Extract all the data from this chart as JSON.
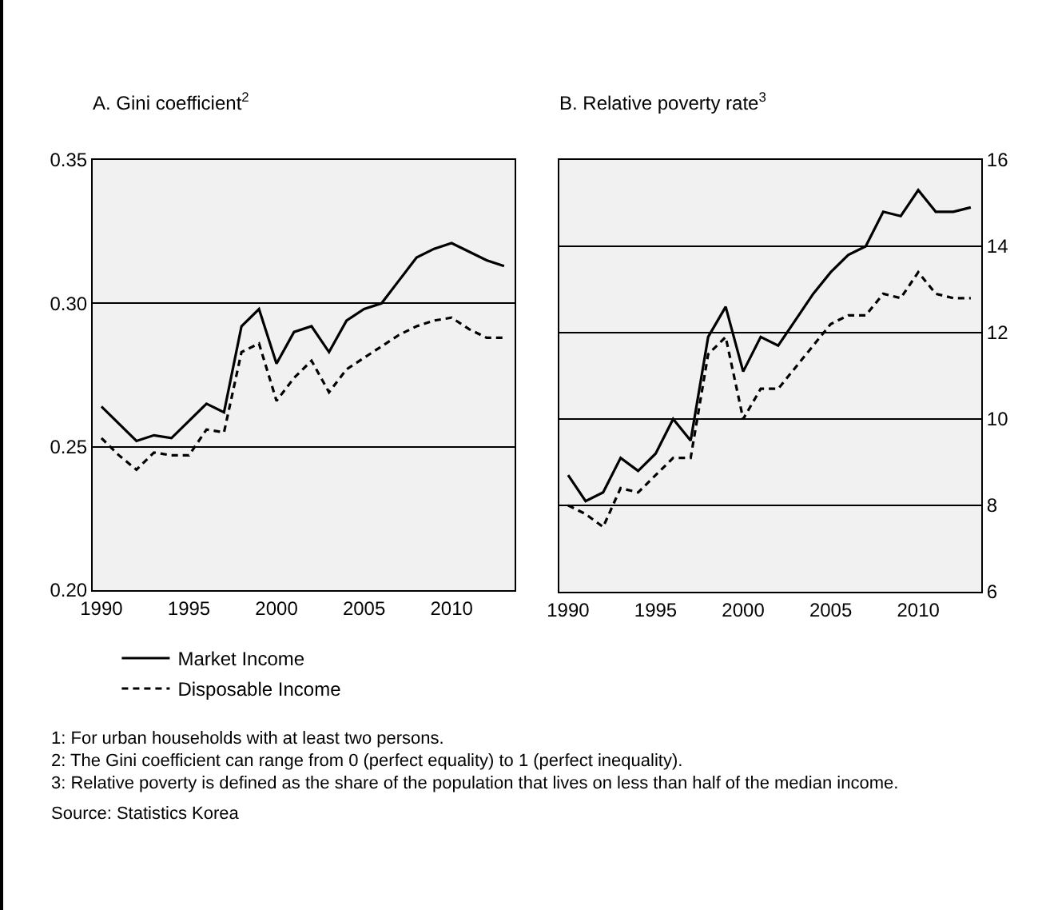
{
  "chart_data": [
    {
      "type": "line",
      "title": "A. Gini coefficient$^{2}$",
      "x": [
        1990,
        1991,
        1992,
        1993,
        1994,
        1995,
        1996,
        1997,
        1998,
        1999,
        2000,
        2001,
        2002,
        2003,
        2004,
        2005,
        2006,
        2007,
        2008,
        2009,
        2010,
        2011,
        2012,
        2013
      ],
      "series": [
        {
          "name": "Market Income",
          "color": "#000000",
          "line_style": "solid",
          "values": [
            0.264,
            0.258,
            0.252,
            0.254,
            0.253,
            0.259,
            0.265,
            0.262,
            0.292,
            0.298,
            0.279,
            0.29,
            0.292,
            0.283,
            0.294,
            0.298,
            0.3,
            0.308,
            0.316,
            0.319,
            0.321,
            0.318,
            0.315,
            0.313
          ]
        },
        {
          "name": "Disposable Income",
          "color": "#000000",
          "line_style": "dashed",
          "values": [
            0.253,
            0.247,
            0.242,
            0.248,
            0.247,
            0.247,
            0.256,
            0.255,
            0.283,
            0.286,
            0.266,
            0.274,
            0.28,
            0.269,
            0.277,
            0.281,
            0.285,
            0.289,
            0.292,
            0.294,
            0.295,
            0.291,
            0.288,
            0.288
          ]
        }
      ],
      "xlim": [
        1989.5,
        2013.6
      ],
      "xticks": [
        1990,
        1995,
        2000,
        2005,
        2010
      ],
      "ylim": [
        0.2,
        0.35
      ],
      "yticks": [
        {
          "value": 0.2,
          "label": "0.20"
        },
        {
          "value": 0.25,
          "label": "0.25"
        },
        {
          "value": 0.3,
          "label": "0.30"
        },
        {
          "value": 0.35,
          "label": "0.35"
        }
      ],
      "grid": "y",
      "legend": "bottom",
      "annotations": [
        "1: For urban households with at least two persons.",
        "2: The Gini coefficient can range from 0 (perfect equality) to 1 (perfect inequality).",
        "3: Relative poverty is defined as the share of the population that lives on less than half of the median income.",
        "Source: Statistics Korea"
      ]
    },
    {
      "type": "line",
      "title": "B. Relative poverty rate$^{3}$",
      "x": [
        1990,
        1991,
        1992,
        1993,
        1994,
        1995,
        1996,
        1997,
        1998,
        1999,
        2000,
        2001,
        2002,
        2003,
        2004,
        2005,
        2006,
        2007,
        2008,
        2009,
        2010,
        2011,
        2012,
        2013
      ],
      "series": [
        {
          "color": "#000000",
          "line_style": "solid",
          "values": [
            8.7,
            8.1,
            8.3,
            9.1,
            8.8,
            9.2,
            10.0,
            9.5,
            11.9,
            12.6,
            11.1,
            11.9,
            11.7,
            12.3,
            12.9,
            13.4,
            13.8,
            14.0,
            14.8,
            14.7,
            15.3,
            14.8,
            14.8,
            14.9
          ]
        },
        {
          "color": "#000000",
          "line_style": "dashed",
          "values": [
            8.0,
            7.8,
            7.5,
            8.4,
            8.3,
            8.7,
            9.1,
            9.1,
            11.5,
            11.9,
            10.0,
            10.7,
            10.7,
            11.2,
            11.7,
            12.2,
            12.4,
            12.4,
            12.9,
            12.8,
            13.4,
            12.9,
            12.8,
            12.8
          ]
        }
      ],
      "xlim": [
        1989.5,
        2013.6
      ],
      "xticks": [
        1990,
        1995,
        2000,
        2005,
        2010
      ],
      "ylim": [
        6,
        16
      ],
      "yticks": [
        6,
        8,
        10,
        12,
        14,
        16
      ],
      "grid": "y",
      "legend": false
    }
  ]
}
